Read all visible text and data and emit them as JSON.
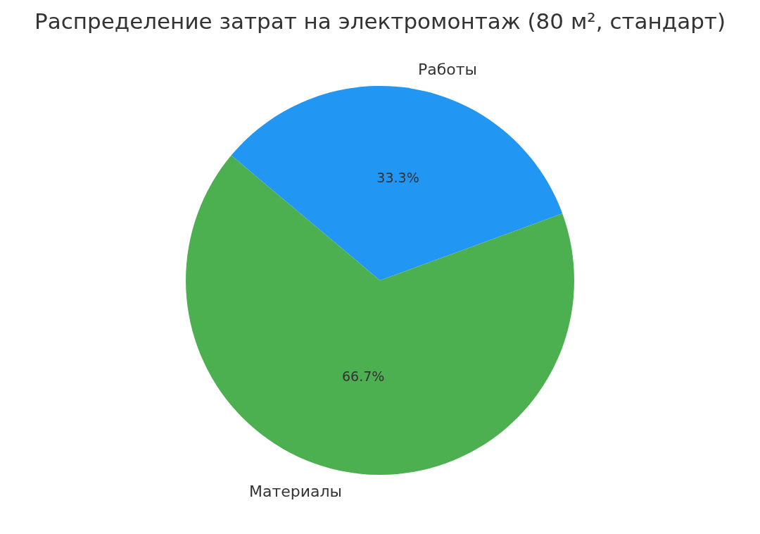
{
  "chart_data": {
    "type": "pie",
    "title": "Распределение затрат на электромонтаж (80 м², стандарт)",
    "categories": [
      "Работы",
      "Материалы"
    ],
    "values": [
      33.3,
      66.7
    ],
    "value_labels": [
      "33.3%",
      "66.7%"
    ],
    "colors": [
      "#2196f3",
      "#4caf50"
    ],
    "legend": false
  }
}
